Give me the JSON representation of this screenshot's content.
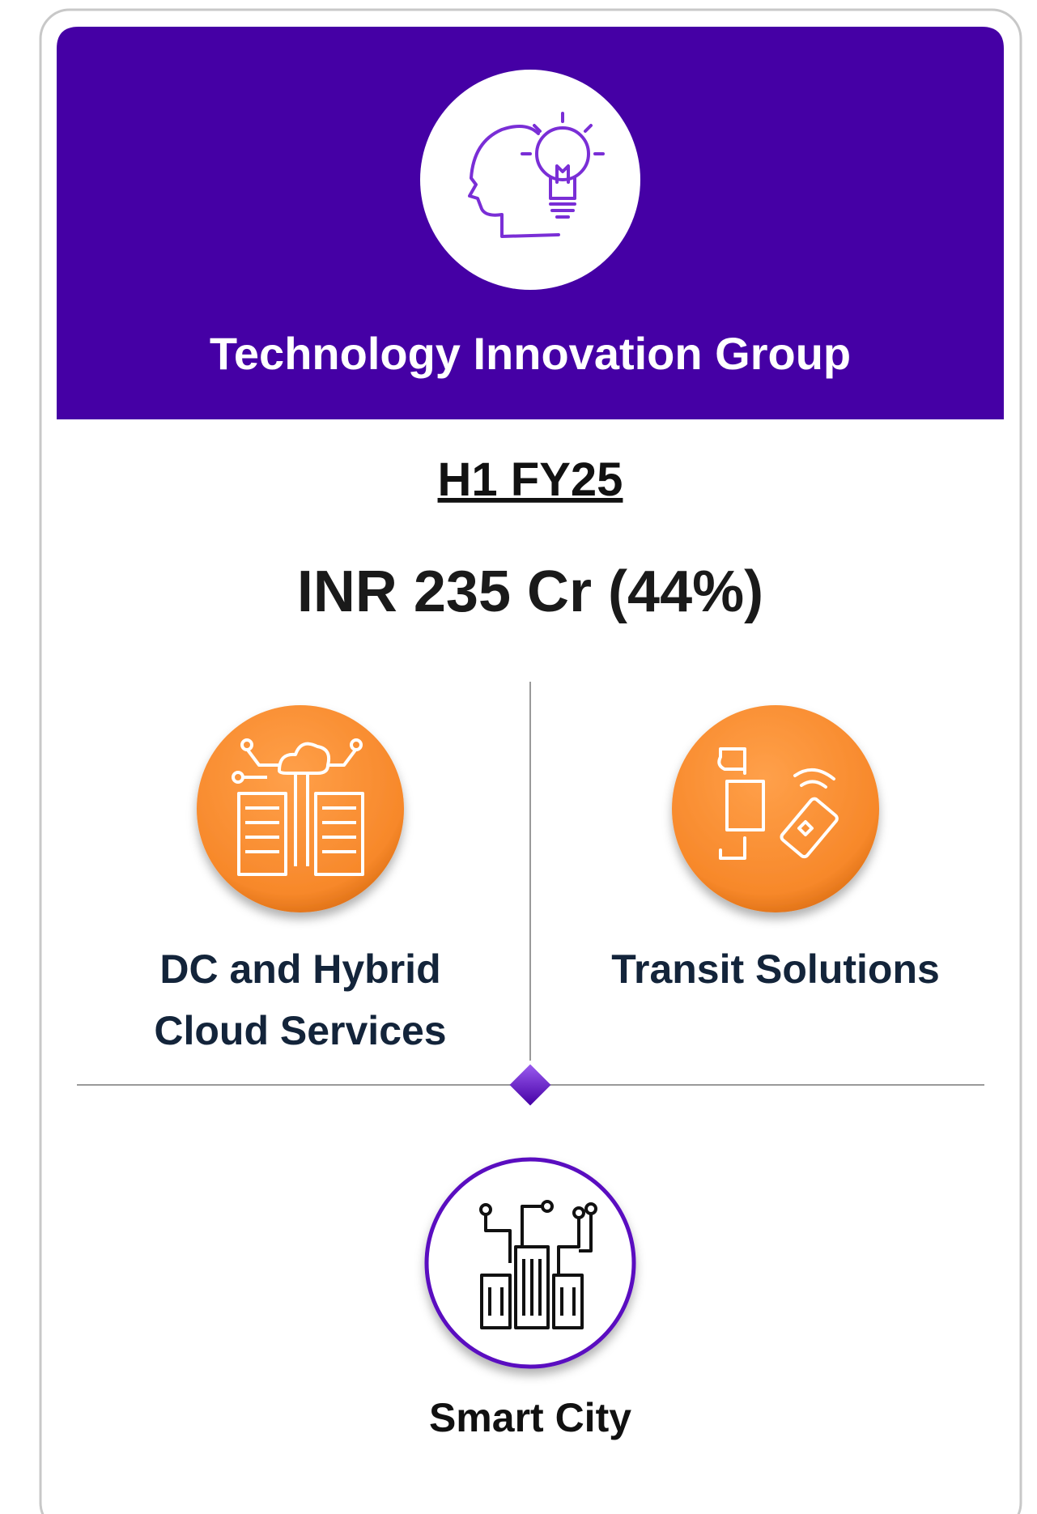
{
  "header": {
    "title": "Technology Innovation Group"
  },
  "period": "H1 FY25",
  "revenue": "INR 235 Cr (44%)",
  "segments": [
    {
      "label_lines": [
        "DC and Hybrid",
        "Cloud Services"
      ]
    },
    {
      "label_lines": [
        "Transit Solutions"
      ]
    },
    {
      "label_lines": [
        "Smart City"
      ]
    }
  ]
}
